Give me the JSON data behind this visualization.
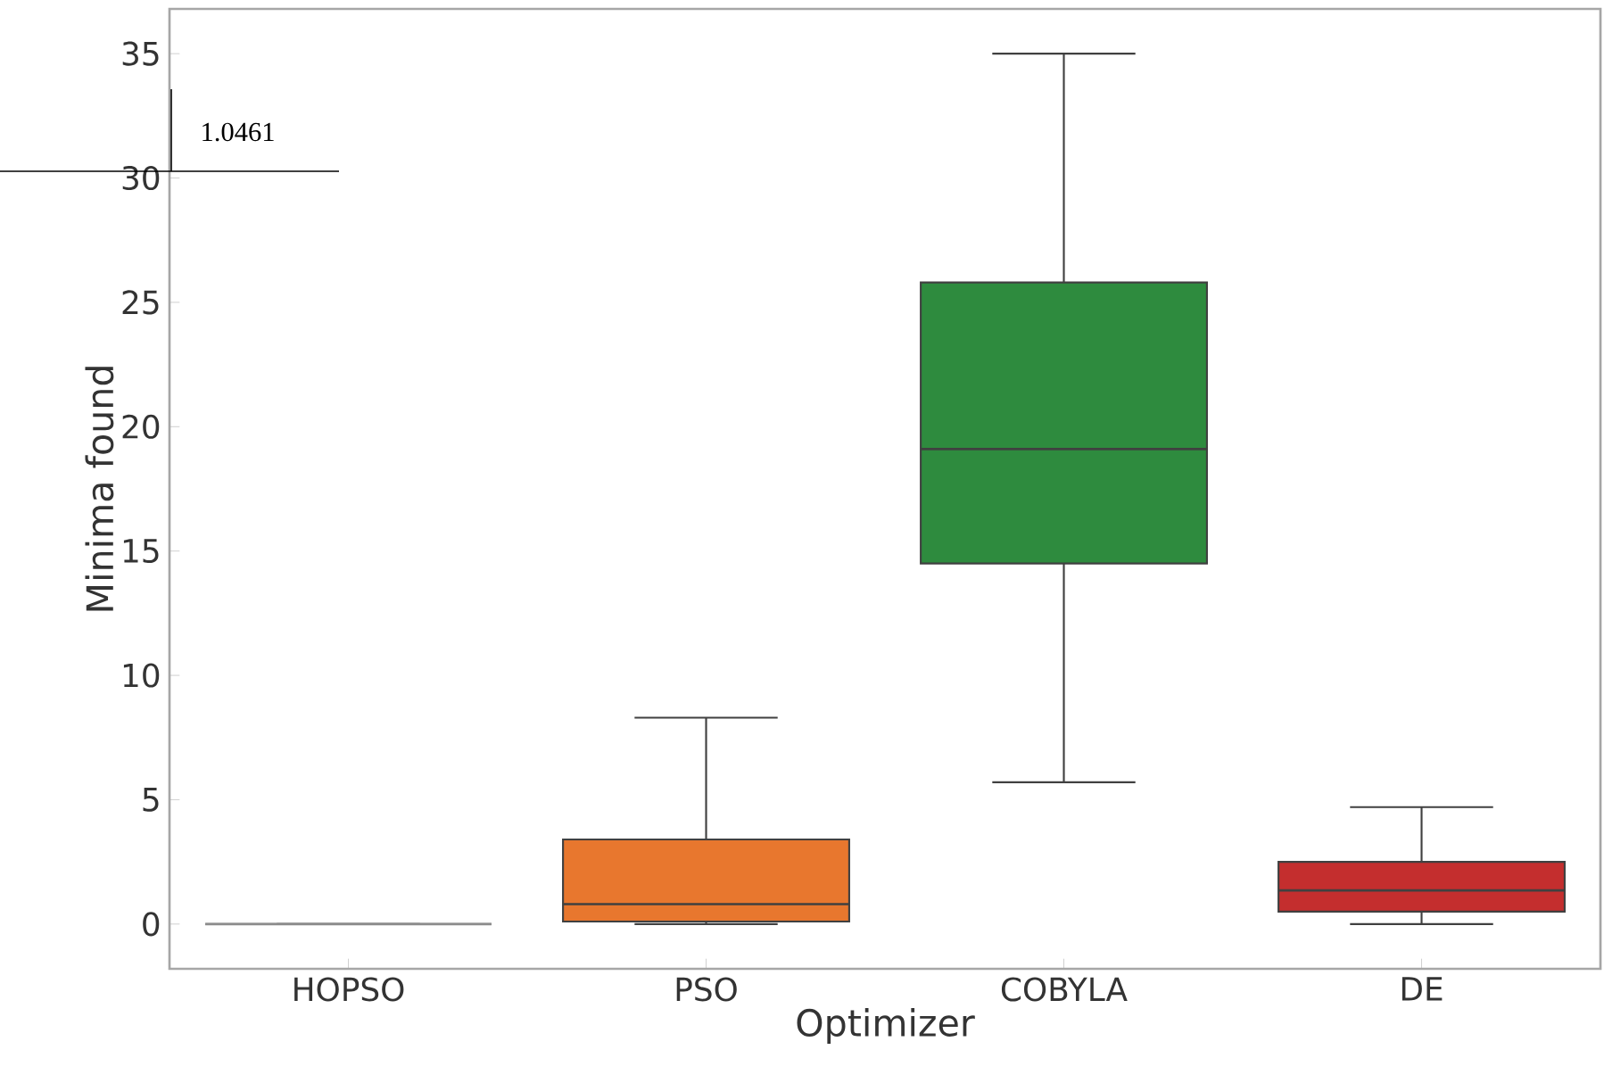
{
  "chart_data": {
    "type": "box",
    "xlabel": "Optimizer",
    "ylabel": "Minima found",
    "categories": [
      "HOPSO",
      "PSO",
      "COBYLA",
      "DE"
    ],
    "colors": [
      "#8c8c8c",
      "#e8772e",
      "#2e8b3e",
      "#c42e2e"
    ],
    "boxes": [
      {
        "low": 0,
        "q1": 0,
        "median": 0,
        "q3": 0,
        "high": 0
      },
      {
        "low": 0,
        "q1": 0.1,
        "median": 0.8,
        "q3": 3.4,
        "high": 8.3
      },
      {
        "low": 5.7,
        "q1": 14.5,
        "median": 19.1,
        "q3": 25.8,
        "high": 35
      },
      {
        "low": 0,
        "q1": 0.5,
        "median": 1.35,
        "q3": 2.5,
        "high": 4.7
      }
    ],
    "ylim": [
      -1.8,
      36.8
    ],
    "yticks": [
      0,
      5,
      10,
      15,
      20,
      25,
      30,
      35
    ],
    "grid": false,
    "annotations": [
      "1.0461"
    ]
  }
}
